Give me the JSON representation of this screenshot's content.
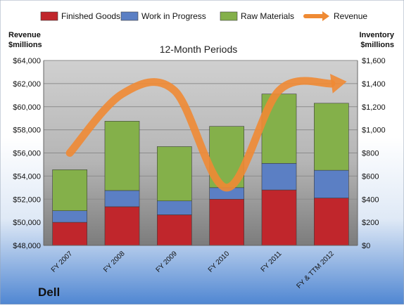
{
  "company": "Dell",
  "chart_data": {
    "type": "bar",
    "stacked": true,
    "title": "12-Month Periods",
    "ylabel_left": "Revenue\n$millions",
    "ylabel_right": "Inventory\n$millions",
    "categories": [
      "FY 2007",
      "FY 2008",
      "FY 2009",
      "FY 2010",
      "FY 2011",
      "FY & TTM 2012"
    ],
    "series": [
      {
        "name": "Finished Goods",
        "color": "#c0262c",
        "axis": "right",
        "values": [
          200,
          335,
          265,
          400,
          480,
          410
        ]
      },
      {
        "name": "Work in Progress",
        "color": "#5b7fc4",
        "axis": "right",
        "values": [
          100,
          140,
          120,
          100,
          230,
          240
        ]
      },
      {
        "name": "Raw Materials",
        "color": "#84b04a",
        "axis": "right",
        "values": [
          355,
          600,
          470,
          530,
          600,
          580
        ]
      }
    ],
    "line_series": {
      "name": "Revenue",
      "color": "#ef8a34",
      "axis": "left",
      "values": [
        56000,
        61100,
        61400,
        53000,
        61400,
        62000
      ]
    },
    "y_left": {
      "min": 48000,
      "max": 64000,
      "ticks": [
        "$48,000",
        "$50,000",
        "$52,000",
        "$54,000",
        "$56,000",
        "$58,000",
        "$60,000",
        "$62,000",
        "$64,000"
      ]
    },
    "y_right": {
      "min": 0,
      "max": 1600,
      "ticks": [
        "$0",
        "$200",
        "$400",
        "$600",
        "$800",
        "$1,000",
        "$1,200",
        "$1,400",
        "$1,600"
      ]
    },
    "legend_position": "top",
    "grid": true
  }
}
